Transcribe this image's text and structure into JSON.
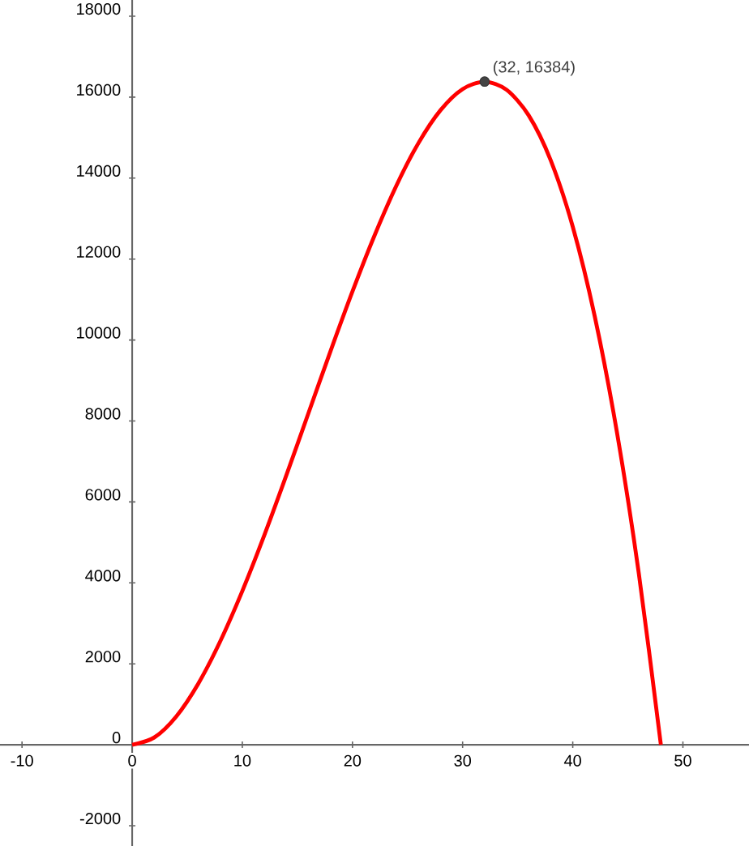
{
  "chart_data": {
    "type": "line",
    "xlim": [
      -12,
      56
    ],
    "ylim": [
      -2500,
      18400
    ],
    "xticks": [
      -10,
      0,
      10,
      20,
      30,
      40,
      50
    ],
    "yticks": [
      -2000,
      0,
      2000,
      4000,
      6000,
      8000,
      10000,
      12000,
      14000,
      16000,
      18000
    ],
    "grid": false,
    "series": [
      {
        "color": "#ff0000",
        "marker": "none",
        "line_style": "solid",
        "x": [
          0,
          2,
          4,
          6,
          8,
          10,
          12,
          14,
          16,
          18,
          20,
          22,
          24,
          26,
          28,
          30,
          32,
          34,
          36,
          38,
          40,
          42,
          44,
          46,
          48
        ],
        "values": [
          0,
          180,
          700,
          1510,
          2560,
          3800,
          5180,
          6660,
          8190,
          9720,
          11200,
          12580,
          13820,
          14870,
          15680,
          16200,
          16380,
          16180,
          15550,
          14440,
          12800,
          10580,
          7740,
          4230,
          0
        ]
      },
      {
        "type": "scatter",
        "color": "#444444",
        "marker": "circle",
        "x": [
          32
        ],
        "values": [
          16384
        ]
      }
    ],
    "annotations": [
      {
        "text": "(32, 16384)",
        "x": 32,
        "y": 16384
      }
    ]
  }
}
